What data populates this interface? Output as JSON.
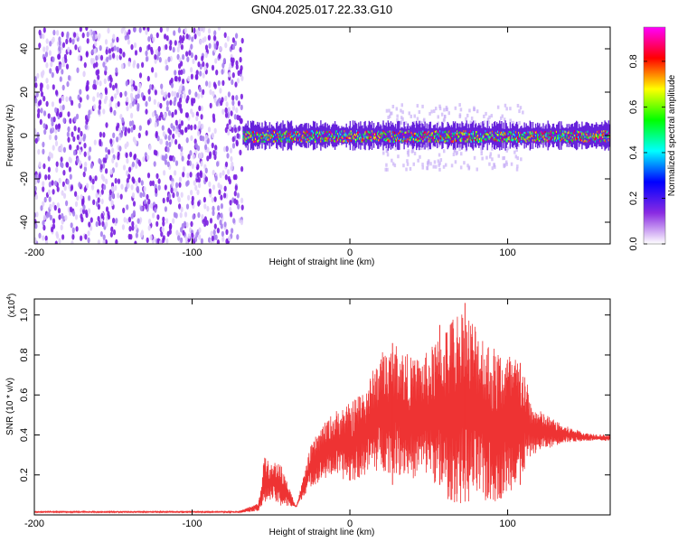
{
  "title": "GN04.2025.017.22.33.G10",
  "chart_data": [
    {
      "type": "heatmap",
      "xlabel": "Height of straight line (km)",
      "ylabel": "Frequency (Hz)",
      "xlim": [
        -200,
        165
      ],
      "ylim": [
        -50,
        50
      ],
      "xticks": [
        "-200",
        "-100",
        "0",
        "100"
      ],
      "xtick_values": [
        -200,
        -100,
        0,
        100
      ],
      "yticks": [
        "-40",
        "-20",
        "0",
        "20",
        "40"
      ],
      "ytick_values": [
        -40,
        -20,
        0,
        20,
        40
      ],
      "colorbar": {
        "label": "Normalized spectral amplitude",
        "range": [
          0,
          0.95
        ],
        "ticks": [
          "0.0",
          "0.2",
          "0.4",
          "0.6",
          "0.8"
        ],
        "tick_values": [
          0,
          0.2,
          0.4,
          0.6,
          0.8
        ],
        "colors": [
          "#ffffff",
          "#8a2be2",
          "#0000ff",
          "#00ffff",
          "#00ff00",
          "#ffff00",
          "#ff0000",
          "#ff00ff"
        ]
      },
      "regions": [
        {
          "x": [
            -200,
            -68
          ],
          "freq": [
            -50,
            50
          ],
          "amplitude": 0.1
        },
        {
          "x": [
            -68,
            165
          ],
          "freq": [
            -5,
            5
          ],
          "amplitude": 0.7
        },
        {
          "x": [
            20,
            110
          ],
          "freq": [
            -15,
            15
          ],
          "amplitude": 0.15
        }
      ],
      "series_color": "#7f00ff"
    },
    {
      "type": "line",
      "xlabel": "Height of straight line (km)",
      "ylabel": "SNR (10 * v/v)",
      "y_multiplier": "(x10",
      "y_multiplier_exp": "4",
      "y_multiplier_close": ")",
      "xlim": [
        -200,
        165
      ],
      "ylim": [
        0,
        1.08
      ],
      "xticks": [
        "-200",
        "-100",
        "0",
        "100"
      ],
      "xtick_values": [
        -200,
        -100,
        0,
        100
      ],
      "yticks": [
        "0.2",
        "0.4",
        "0.6",
        "0.8",
        "1.0"
      ],
      "ytick_values": [
        0.2,
        0.4,
        0.6,
        0.8,
        1.0
      ],
      "color": "#ee3333",
      "envelope": {
        "x": [
          -200,
          -160,
          -120,
          -90,
          -70,
          -58,
          -54,
          -50,
          -45,
          -40,
          -34,
          -25,
          -20,
          -10,
          0,
          10,
          20,
          30,
          40,
          50,
          60,
          70,
          80,
          90,
          100,
          110,
          115,
          125,
          135,
          150,
          165
        ],
        "low": [
          0.01,
          0.01,
          0.01,
          0.01,
          0.01,
          0.02,
          0.05,
          0.08,
          0.04,
          0.04,
          0.04,
          0.14,
          0.16,
          0.2,
          0.16,
          0.2,
          0.22,
          0.2,
          0.18,
          0.2,
          0.08,
          0.05,
          0.06,
          0.05,
          0.1,
          0.2,
          0.3,
          0.33,
          0.36,
          0.37,
          0.37
        ],
        "high": [
          0.02,
          0.02,
          0.02,
          0.02,
          0.02,
          0.06,
          0.3,
          0.25,
          0.28,
          0.17,
          0.04,
          0.34,
          0.42,
          0.52,
          0.56,
          0.65,
          0.82,
          0.86,
          0.78,
          0.82,
          0.95,
          1.05,
          0.98,
          0.85,
          0.82,
          0.76,
          0.55,
          0.5,
          0.45,
          0.41,
          0.4
        ]
      },
      "peaks": [
        {
          "x": 73,
          "y": 1.06
        },
        {
          "x": 27,
          "y": 0.86
        },
        {
          "x": 57,
          "y": 0.95
        },
        {
          "x": 108,
          "y": 0.76
        }
      ]
    }
  ]
}
